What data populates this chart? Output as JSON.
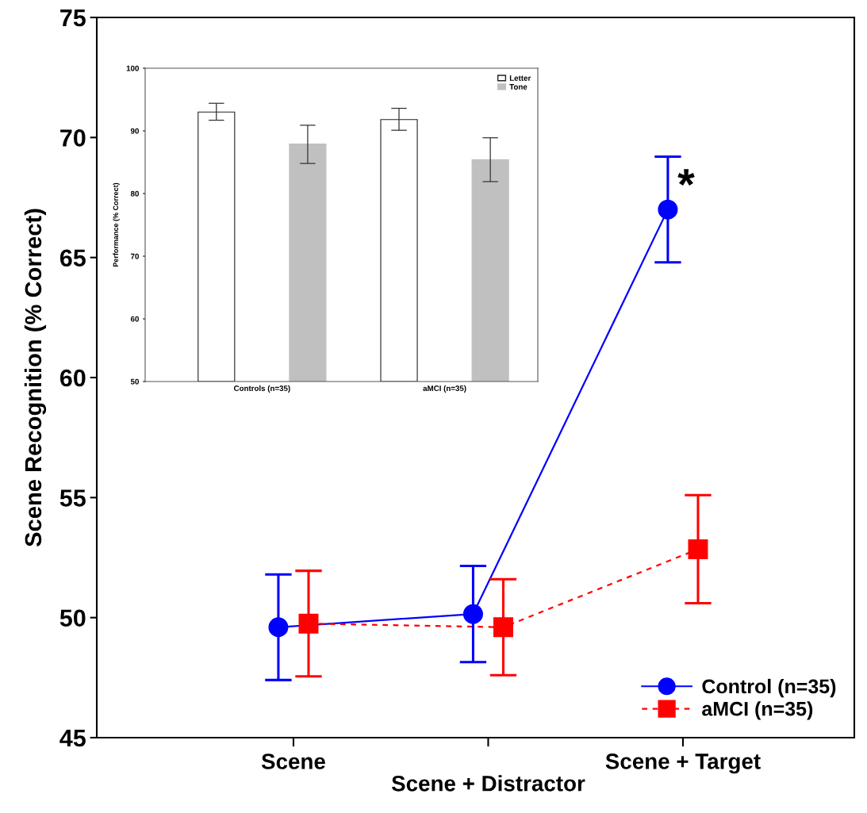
{
  "chart_data": [
    {
      "type": "line",
      "ylabel": "Scene Recognition (% Correct)",
      "categories": [
        "Scene",
        "Scene + Distractor",
        "Scene + Target"
      ],
      "ylim": [
        45,
        75
      ],
      "yticks": [
        45,
        50,
        55,
        60,
        65,
        70,
        75
      ],
      "grid": false,
      "legend": "bottom right",
      "series": [
        {
          "name": "Control (n=35)",
          "color": "#0000ff",
          "marker": "circle",
          "line_style": "solid",
          "values": [
            49.6,
            50.15,
            67.0
          ],
          "errors": [
            2.2,
            2.0,
            2.2
          ]
        },
        {
          "name": "aMCI (n=35)",
          "color": "#ff0000",
          "marker": "square",
          "line_style": "dashed",
          "values": [
            49.75,
            49.6,
            52.85
          ],
          "errors": [
            2.2,
            2.0,
            2.25
          ]
        }
      ],
      "annotations": [
        "*"
      ]
    },
    {
      "type": "bar",
      "ylabel": "Performance (% Correct)",
      "categories": [
        "Controls (n=35)",
        "aMCI (n=35)"
      ],
      "ylim": [
        50,
        100
      ],
      "yticks": [
        50,
        60,
        70,
        80,
        90,
        100
      ],
      "grid": false,
      "legend": "top right",
      "series": [
        {
          "name": "Letter",
          "color": "#ffffff",
          "values": [
            93.0,
            91.8
          ],
          "errors": [
            [
              91.7,
              94.4
            ],
            [
              90.1,
              93.6
            ]
          ]
        },
        {
          "name": "Tone",
          "color": "#c0c0c0",
          "values": [
            87.9,
            85.4
          ],
          "errors": [
            [
              84.8,
              90.9
            ],
            [
              81.9,
              88.9
            ]
          ]
        }
      ]
    }
  ]
}
